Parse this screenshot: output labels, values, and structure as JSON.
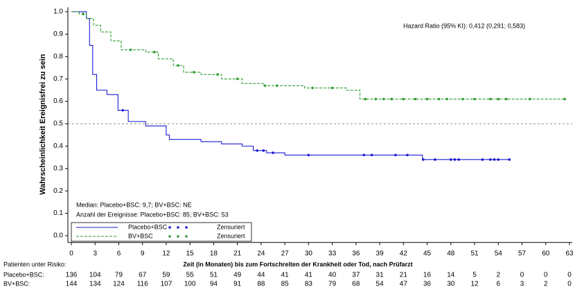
{
  "chart_data": {
    "type": "km",
    "title_annotation": "Hazard Ratio (95% KI): 0,412 (0,291; 0,583)",
    "ylabel": "Wahrscheinlichkeit Ereignisfrei zu sein",
    "xlabel": "Zeit (in Monaten) bis zum Fortschreiten der Krankheit oder Tod, nach Prüfarzt",
    "notes": [
      "Median: Placebo+BSC: 9,7; BV+BSC: NE",
      "Anzahl der Ereignisse: Placebo+BSC: 85; BV+BSC: 53"
    ],
    "censor_label": "Zensuriert",
    "xlim": [
      0,
      63
    ],
    "ylim": [
      -0.03,
      1.02
    ],
    "xticks": [
      0,
      3,
      6,
      9,
      12,
      15,
      18,
      21,
      24,
      27,
      30,
      33,
      36,
      39,
      42,
      45,
      48,
      51,
      54,
      57,
      60,
      63
    ],
    "yticks": [
      {
        "value": 0,
        "label": "0.0"
      },
      0.1,
      0.2,
      0.3,
      0.4,
      0.5,
      0.6,
      0.7,
      0.8,
      0.9,
      {
        "value": 1,
        "label": "1.0"
      }
    ],
    "reference_line": 0.5,
    "series": [
      {
        "name": "Placebo+BSC",
        "color": "#1a1ad4",
        "dash": false,
        "x": [
          0,
          1.9,
          2.3,
          2.7,
          3.2,
          4.5,
          5.9,
          7.2,
          9.4,
          12,
          12.4,
          16.4,
          19,
          21.6,
          23,
          24.7,
          27,
          44.4,
          55.4
        ],
        "values": [
          1,
          0.97,
          0.85,
          0.72,
          0.65,
          0.63,
          0.56,
          0.51,
          0.49,
          0.45,
          0.43,
          0.42,
          0.41,
          0.4,
          0.38,
          0.37,
          0.36,
          0.34,
          0.34
        ],
        "censored": [
          6.5,
          23.5,
          24.3,
          25.5,
          30,
          37,
          38,
          41,
          42.5,
          44.5,
          46,
          48,
          48.5,
          49,
          52,
          53,
          53.5,
          54,
          55.4
        ]
      },
      {
        "name": "BV+BSC",
        "color": "#2e9a2e",
        "dash": true,
        "x": [
          0,
          1,
          1.9,
          2.8,
          3.7,
          5,
          6.3,
          9.4,
          11,
          12.9,
          14.2,
          16.4,
          19,
          21.6,
          24.3,
          29.5,
          34.8,
          36.5,
          62.4
        ],
        "values": [
          1,
          0.99,
          0.97,
          0.94,
          0.91,
          0.87,
          0.83,
          0.82,
          0.79,
          0.76,
          0.73,
          0.72,
          0.7,
          0.68,
          0.67,
          0.66,
          0.65,
          0.61,
          0.61
        ],
        "censored": [
          1.5,
          7.5,
          10.5,
          13.5,
          15.5,
          18.5,
          21,
          24.5,
          26,
          30.5,
          33,
          37.2,
          38.5,
          39.5,
          40.5,
          42,
          43.5,
          45,
          46.5,
          47.5,
          49.5,
          51,
          53,
          54,
          55,
          58,
          62.4
        ]
      }
    ],
    "risk_table": {
      "title": "Patienten unter Risiko:",
      "rows": [
        {
          "label": "Placebo+BSC:",
          "values": [
            136,
            104,
            79,
            67,
            59,
            55,
            51,
            49,
            44,
            41,
            41,
            40,
            37,
            31,
            21,
            16,
            14,
            5,
            2,
            0,
            0,
            0
          ]
        },
        {
          "label": "BV+BSC:",
          "values": [
            144,
            134,
            124,
            116,
            107,
            100,
            94,
            91,
            88,
            85,
            83,
            79,
            68,
            54,
            47,
            36,
            30,
            12,
            6,
            3,
            2,
            0
          ]
        }
      ]
    }
  }
}
